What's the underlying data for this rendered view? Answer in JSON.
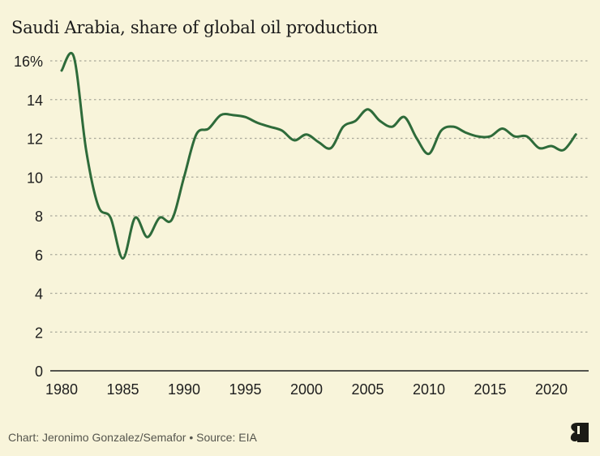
{
  "header": {
    "title": "Saudi Arabia, share of global oil production"
  },
  "footer": {
    "credit": "Chart: Jeronimo Gonzalez/Semafor • Source: EIA",
    "logo_icon": "semafor-logo-icon"
  },
  "colors": {
    "background": "#f8f4da",
    "line": "#2e6b3a",
    "grid": "#a9a89a",
    "axis": "#1e1e1e"
  },
  "chart_data": {
    "type": "line",
    "title": "Saudi Arabia, share of global oil production",
    "xlabel": "",
    "ylabel": "",
    "xlim": [
      1980,
      2022
    ],
    "ylim": [
      0,
      16
    ],
    "grid": true,
    "legend": "none",
    "x_ticks": [
      1980,
      1985,
      1990,
      1995,
      2000,
      2005,
      2010,
      2015,
      2020
    ],
    "x_tick_labels": [
      "1980",
      "1985",
      "1990",
      "1995",
      "2000",
      "2005",
      "2010",
      "2015",
      "2020"
    ],
    "y_ticks": [
      0,
      2,
      4,
      6,
      8,
      10,
      12,
      14,
      16
    ],
    "y_tick_labels": [
      "0",
      "2",
      "4",
      "6",
      "8",
      "10",
      "12",
      "14",
      "16%"
    ],
    "x": [
      1980,
      1981,
      1982,
      1983,
      1984,
      1985,
      1986,
      1987,
      1988,
      1989,
      1990,
      1991,
      1992,
      1993,
      1994,
      1995,
      1996,
      1997,
      1998,
      1999,
      2000,
      2001,
      2002,
      2003,
      2004,
      2005,
      2006,
      2007,
      2008,
      2009,
      2010,
      2011,
      2012,
      2013,
      2014,
      2015,
      2016,
      2017,
      2018,
      2019,
      2020,
      2021,
      2022
    ],
    "series": [
      {
        "name": "Saudi Arabia share of global oil production (%)",
        "values": [
          15.5,
          16.2,
          11.4,
          8.5,
          7.9,
          5.8,
          7.9,
          6.9,
          7.9,
          7.8,
          10.0,
          12.2,
          12.5,
          13.2,
          13.2,
          13.1,
          12.8,
          12.6,
          12.4,
          11.9,
          12.2,
          11.8,
          11.5,
          12.6,
          12.9,
          13.5,
          12.9,
          12.6,
          13.1,
          12.0,
          11.2,
          12.4,
          12.6,
          12.3,
          12.1,
          12.1,
          12.5,
          12.1,
          12.1,
          11.5,
          11.6,
          11.4,
          12.2
        ]
      }
    ]
  }
}
